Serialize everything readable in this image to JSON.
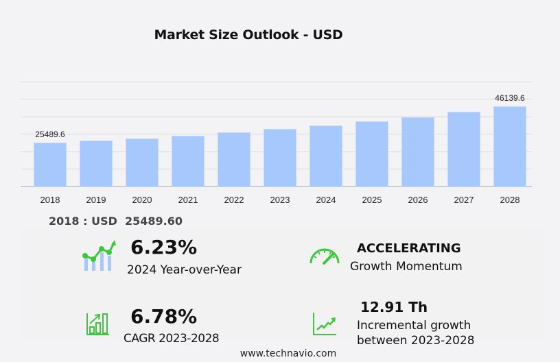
{
  "header": {
    "title": "Market Size Outlook  - USD"
  },
  "chart_data": {
    "type": "bar",
    "title": "Market Size Outlook - USD",
    "xlabel": "",
    "ylabel": "",
    "categories": [
      "2018",
      "2019",
      "2020",
      "2021",
      "2022",
      "2023",
      "2024",
      "2025",
      "2026",
      "2027",
      "2028"
    ],
    "values": [
      25489.6,
      26600,
      27800,
      29300,
      31200,
      33229.6,
      35300,
      37600,
      40100,
      43000,
      46139.6
    ],
    "data_labels": {
      "first": "25489.6",
      "last": "46139.6"
    },
    "ylim": [
      0,
      60000
    ],
    "grid": true,
    "y_ticks_visible": false,
    "bar_color": "#a7c8fd",
    "legend": null
  },
  "summary": {
    "start_year_value": "2018 : USD  25489.60"
  },
  "kpis": {
    "yoy": {
      "value": "6.23%",
      "label": "2024 Year-over-Year",
      "icon": "growth-chart-icon"
    },
    "momentum": {
      "value": "ACCELERATING",
      "label": "Growth Momentum",
      "icon": "speedometer-icon"
    },
    "cagr": {
      "value": "6.78%",
      "label": "CAGR 2023-2028",
      "icon": "bar-chart-up-icon"
    },
    "incremental": {
      "value": "12.91 Th",
      "label_line1": "Incremental growth",
      "label_line2": "between 2023-2028",
      "icon": "trend-line-icon"
    }
  },
  "colors": {
    "accent_green": "#3cc83c",
    "bar": "#a7c8fd",
    "light_bar": "#a7c8fd"
  },
  "footer": {
    "source": "www.technavio.com"
  }
}
